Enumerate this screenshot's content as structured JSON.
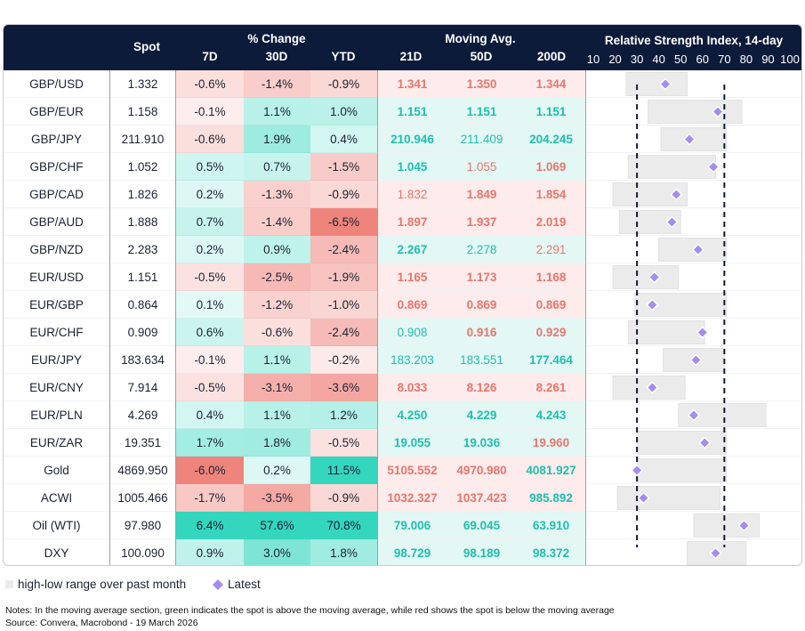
{
  "headers": {
    "spot": "Spot",
    "pct_change": "% Change",
    "moving_avg": "Moving Avg.",
    "rsi_title": "Relative Strength Index, 14-day",
    "d7": "7D",
    "d30": "30D",
    "ytd": "YTD",
    "ma21": "21D",
    "ma50": "50D",
    "ma200": "200D"
  },
  "colors": {
    "header_bg": "#0c1b3a",
    "ma_green_text": "#1fbfad",
    "ma_red_text": "#e8766d",
    "ma_green_bg": "#e3f7f4",
    "ma_red_bg": "#fdeceb",
    "latest_marker": "#a48cf0",
    "range_bar": "#ebebeb",
    "threshold_line": "#0c1b3a"
  },
  "legend": {
    "range_label": "high-low range over past month",
    "latest_label": "Latest"
  },
  "notes": {
    "line1": "Notes: In the moving average section, green indicates the spot is above the moving average, while red shows the spot is below the moving average",
    "line2": "Source: Convera, Macrobond - 19 March 2026"
  },
  "rows": [
    {
      "name": "GBP/USD",
      "spot": "1.332",
      "d7": "-0.6%",
      "d30": "-1.4%",
      "ytd": "-0.9%",
      "ma21": "1.341",
      "ma50": "1.350",
      "ma200": "1.344"
    },
    {
      "name": "GBP/EUR",
      "spot": "1.158",
      "d7": "-0.1%",
      "d30": "1.1%",
      "ytd": "1.0%",
      "ma21": "1.151",
      "ma50": "1.151",
      "ma200": "1.151"
    },
    {
      "name": "GBP/JPY",
      "spot": "211.910",
      "d7": "-0.6%",
      "d30": "1.9%",
      "ytd": "0.4%",
      "ma21": "210.946",
      "ma50": "211.409",
      "ma200": "204.245"
    },
    {
      "name": "GBP/CHF",
      "spot": "1.052",
      "d7": "0.5%",
      "d30": "0.7%",
      "ytd": "-1.5%",
      "ma21": "1.045",
      "ma50": "1.055",
      "ma200": "1.069"
    },
    {
      "name": "GBP/CAD",
      "spot": "1.826",
      "d7": "0.2%",
      "d30": "-1.3%",
      "ytd": "-0.9%",
      "ma21": "1.832",
      "ma50": "1.849",
      "ma200": "1.854"
    },
    {
      "name": "GBP/AUD",
      "spot": "1.888",
      "d7": "0.7%",
      "d30": "-1.4%",
      "ytd": "-6.5%",
      "ma21": "1.897",
      "ma50": "1.937",
      "ma200": "2.019"
    },
    {
      "name": "GBP/NZD",
      "spot": "2.283",
      "d7": "0.2%",
      "d30": "0.9%",
      "ytd": "-2.4%",
      "ma21": "2.267",
      "ma50": "2.278",
      "ma200": "2.291"
    },
    {
      "name": "EUR/USD",
      "spot": "1.151",
      "d7": "-0.5%",
      "d30": "-2.5%",
      "ytd": "-1.9%",
      "ma21": "1.165",
      "ma50": "1.173",
      "ma200": "1.168"
    },
    {
      "name": "EUR/GBP",
      "spot": "0.864",
      "d7": "0.1%",
      "d30": "-1.2%",
      "ytd": "-1.0%",
      "ma21": "0.869",
      "ma50": "0.869",
      "ma200": "0.869"
    },
    {
      "name": "EUR/CHF",
      "spot": "0.909",
      "d7": "0.6%",
      "d30": "-0.6%",
      "ytd": "-2.4%",
      "ma21": "0.908",
      "ma50": "0.916",
      "ma200": "0.929"
    },
    {
      "name": "EUR/JPY",
      "spot": "183.634",
      "d7": "-0.1%",
      "d30": "1.1%",
      "ytd": "-0.2%",
      "ma21": "183.203",
      "ma50": "183.551",
      "ma200": "177.464"
    },
    {
      "name": "EUR/CNY",
      "spot": "7.914",
      "d7": "-0.5%",
      "d30": "-3.1%",
      "ytd": "-3.6%",
      "ma21": "8.033",
      "ma50": "8.126",
      "ma200": "8.261"
    },
    {
      "name": "EUR/PLN",
      "spot": "4.269",
      "d7": "0.4%",
      "d30": "1.1%",
      "ytd": "1.2%",
      "ma21": "4.250",
      "ma50": "4.229",
      "ma200": "4.243"
    },
    {
      "name": "EUR/ZAR",
      "spot": "19.351",
      "d7": "1.7%",
      "d30": "1.8%",
      "ytd": "-0.5%",
      "ma21": "19.055",
      "ma50": "19.036",
      "ma200": "19.960"
    },
    {
      "name": "Gold",
      "spot": "4869.950",
      "d7": "-6.0%",
      "d30": "0.2%",
      "ytd": "11.5%",
      "ma21": "5105.552",
      "ma50": "4970.980",
      "ma200": "4081.927"
    },
    {
      "name": "ACWI",
      "spot": "1005.466",
      "d7": "-1.7%",
      "d30": "-3.5%",
      "ytd": "-0.9%",
      "ma21": "1032.327",
      "ma50": "1037.423",
      "ma200": "985.892"
    },
    {
      "name": "Oil (WTI)",
      "spot": "97.980",
      "d7": "6.4%",
      "d30": "57.6%",
      "ytd": "70.8%",
      "ma21": "79.006",
      "ma50": "69.045",
      "ma200": "63.910"
    },
    {
      "name": "DXY",
      "spot": "100.090",
      "d7": "0.9%",
      "d30": "3.0%",
      "ytd": "1.8%",
      "ma21": "98.729",
      "ma50": "98.189",
      "ma200": "98.372"
    }
  ],
  "chart_data": {
    "type": "table",
    "title": "Relative Strength Index, 14-day",
    "rsi_axis": {
      "min": 10,
      "max": 100,
      "ticks": [
        10,
        20,
        30,
        40,
        50,
        60,
        70,
        80,
        90,
        100
      ]
    },
    "thresholds": [
      30,
      70
    ],
    "legend": [
      "high-low range over past month",
      "Latest"
    ],
    "rsi": [
      {
        "name": "GBP/USD",
        "low": 25,
        "high": 53,
        "latest": 43
      },
      {
        "name": "GBP/EUR",
        "low": 35,
        "high": 78,
        "latest": 67
      },
      {
        "name": "GBP/JPY",
        "low": 41,
        "high": 71,
        "latest": 54
      },
      {
        "name": "GBP/CHF",
        "low": 26,
        "high": 66,
        "latest": 65
      },
      {
        "name": "GBP/CAD",
        "low": 19,
        "high": 53,
        "latest": 48
      },
      {
        "name": "GBP/AUD",
        "low": 22,
        "high": 50,
        "latest": 46
      },
      {
        "name": "GBP/NZD",
        "low": 40,
        "high": 71,
        "latest": 58
      },
      {
        "name": "EUR/USD",
        "low": 19,
        "high": 49,
        "latest": 38
      },
      {
        "name": "EUR/GBP",
        "low": 29,
        "high": 71,
        "latest": 37
      },
      {
        "name": "EUR/CHF",
        "low": 26,
        "high": 61,
        "latest": 60
      },
      {
        "name": "EUR/JPY",
        "low": 42,
        "high": 70,
        "latest": 57
      },
      {
        "name": "EUR/CNY",
        "low": 19,
        "high": 52,
        "latest": 37
      },
      {
        "name": "EUR/PLN",
        "low": 49,
        "high": 89,
        "latest": 56
      },
      {
        "name": "EUR/ZAR",
        "low": 30,
        "high": 71,
        "latest": 61
      },
      {
        "name": "Gold",
        "low": 30,
        "high": 71,
        "latest": 30
      },
      {
        "name": "ACWI",
        "low": 21,
        "high": 68,
        "latest": 33
      },
      {
        "name": "Oil (WTI)",
        "low": 56,
        "high": 86,
        "latest": 79
      },
      {
        "name": "DXY",
        "low": 53,
        "high": 80,
        "latest": 66
      }
    ]
  }
}
